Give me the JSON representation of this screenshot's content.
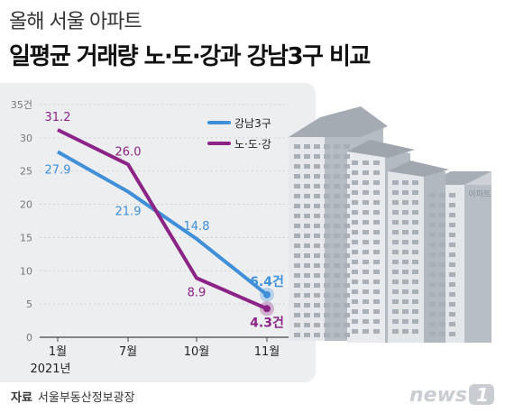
{
  "header": {
    "subtitle": "올해 서울 아파트",
    "title": "일평균 거래량 노·도·강과 강남3구 비교"
  },
  "source": {
    "label": "자료",
    "text": "서울부동산정보광장"
  },
  "building_label": "아파트",
  "logo": {
    "text": "news1"
  },
  "colors": {
    "gangnam": "#3f8fd9",
    "nodogang": "#8b2486",
    "plot_bg": "#eceef0"
  },
  "chart_data": {
    "type": "line",
    "categories": [
      "1월",
      "7월",
      "10월",
      "11월"
    ],
    "x_sublabel": "2021년",
    "y_unit": "건",
    "ylim": [
      0,
      35
    ],
    "yticks": [
      0,
      5,
      10,
      15,
      20,
      25,
      30,
      35
    ],
    "ytick_labels": [
      "0",
      "5",
      "10",
      "15",
      "20",
      "25",
      "30",
      "35건"
    ],
    "grid": true,
    "legend_position": "top-right",
    "series": [
      {
        "name": "강남3구",
        "values": [
          27.9,
          21.9,
          14.8,
          6.4
        ],
        "labels": [
          "27.9",
          "21.9",
          "14.8",
          "6.4건"
        ]
      },
      {
        "name": "노·도·강",
        "values": [
          31.2,
          26.0,
          8.9,
          4.3
        ],
        "labels": [
          "31.2",
          "26.0",
          "8.9",
          "4.3건"
        ]
      }
    ]
  }
}
